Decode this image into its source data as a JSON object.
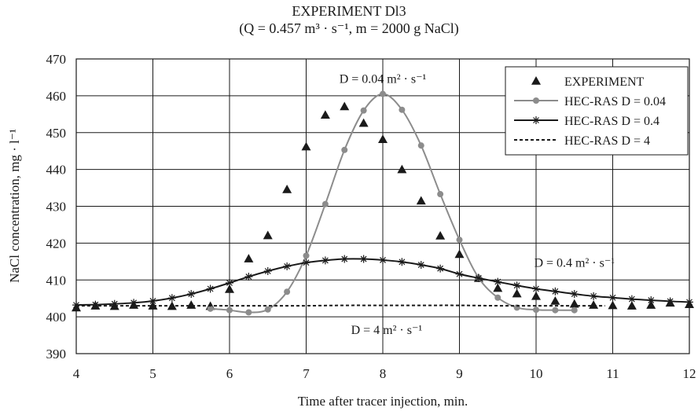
{
  "chart_data": {
    "type": "line",
    "title": "EXPERIMENT Dl3",
    "subtitle": "(Q = 0.457 m³ · s⁻¹, m = 2000 g NaCl)",
    "xlabel": "Time after tracer injection, min.",
    "ylabel": "NaCl concentration, mg · l⁻¹",
    "xlim": [
      4,
      12
    ],
    "ylim": [
      390,
      470
    ],
    "xticks": [
      "4",
      "5",
      "6",
      "7",
      "8",
      "9",
      "10",
      "11",
      "12"
    ],
    "yticks": [
      "390",
      "400",
      "410",
      "420",
      "430",
      "440",
      "450",
      "460",
      "470"
    ],
    "grid": true,
    "legend_position": "top-right",
    "annotations": [
      {
        "text": "D = 0.04 m² · s⁻¹",
        "x": 8.0,
        "y": 463.5
      },
      {
        "text": "D = 0.4 m² · s⁻¹",
        "x": 10.5,
        "y": 413.6
      },
      {
        "text": "D = 4 m² · s⁻¹",
        "x": 8.05,
        "y": 395.3
      }
    ],
    "series": [
      {
        "name": "EXPERIMENT",
        "style": "markers",
        "marker": "triangle",
        "color": "#1a1a1a",
        "x": [
          4.0,
          4.25,
          4.5,
          4.75,
          5.0,
          5.25,
          5.5,
          5.75,
          6.0,
          6.25,
          6.5,
          6.75,
          7.0,
          7.25,
          7.5,
          7.75,
          8.0,
          8.25,
          8.5,
          8.75,
          9.0,
          9.25,
          9.5,
          9.75,
          10.0,
          10.25,
          10.5,
          10.75,
          11.0,
          11.25,
          11.5,
          11.75,
          12.0
        ],
        "y": [
          402.5,
          403.0,
          402.9,
          403.2,
          403.0,
          402.9,
          403.2,
          402.9,
          407.5,
          415.8,
          422.1,
          434.6,
          446.2,
          454.8,
          457.1,
          452.6,
          448.2,
          440.0,
          431.5,
          422.0,
          417.0,
          410.5,
          407.8,
          406.3,
          405.6,
          404.3,
          403.5,
          403.2,
          403.1,
          403.0,
          403.2,
          403.8,
          403.4
        ]
      },
      {
        "name": "HEC-RAS D = 0.04",
        "style": "line-markers",
        "marker": "circle",
        "color": "#8c8c8c",
        "x": [
          5.75,
          6.0,
          6.25,
          6.5,
          6.75,
          7.0,
          7.25,
          7.5,
          7.75,
          8.0,
          8.25,
          8.5,
          8.75,
          9.0,
          9.25,
          9.5,
          9.75,
          10.0,
          10.25,
          10.5
        ],
        "y": [
          402.2,
          401.8,
          401.2,
          402.0,
          406.8,
          416.6,
          430.6,
          445.3,
          456.0,
          460.5,
          456.2,
          446.5,
          433.3,
          420.9,
          410.6,
          405.2,
          402.5,
          401.9,
          401.8,
          401.8
        ]
      },
      {
        "name": "HEC-RAS D = 0.4",
        "style": "line-markers",
        "marker": "asterisk",
        "color": "#1a1a1a",
        "x": [
          4.0,
          4.25,
          4.5,
          4.75,
          5.0,
          5.25,
          5.5,
          5.75,
          6.0,
          6.25,
          6.5,
          6.75,
          7.0,
          7.25,
          7.5,
          7.75,
          8.0,
          8.25,
          8.5,
          8.75,
          9.0,
          9.25,
          9.5,
          9.75,
          10.0,
          10.25,
          10.5,
          10.75,
          11.0,
          11.25,
          11.5,
          11.75,
          12.0
        ],
        "y": [
          403.2,
          403.3,
          403.5,
          403.8,
          404.3,
          405.1,
          406.2,
          407.6,
          409.2,
          410.9,
          412.4,
          413.7,
          414.7,
          415.3,
          415.7,
          415.7,
          415.4,
          414.9,
          414.1,
          413.1,
          411.6,
          410.5,
          409.5,
          408.5,
          407.6,
          406.9,
          406.2,
          405.6,
          405.2,
          404.8,
          404.5,
          404.2,
          404.0
        ]
      },
      {
        "name": "HEC-RAS D = 4",
        "style": "dashed",
        "color": "#1a1a1a",
        "x": [
          4.0,
          4.5,
          5.0,
          5.5,
          6.0,
          6.5,
          7.0,
          7.5,
          8.0,
          8.5,
          9.0,
          9.5,
          10.0,
          10.5,
          10.9
        ],
        "y": [
          403.0,
          403.0,
          403.0,
          403.0,
          403.0,
          403.0,
          403.0,
          403.1,
          403.1,
          403.1,
          403.1,
          403.0,
          403.0,
          403.0,
          403.0
        ]
      }
    ]
  }
}
